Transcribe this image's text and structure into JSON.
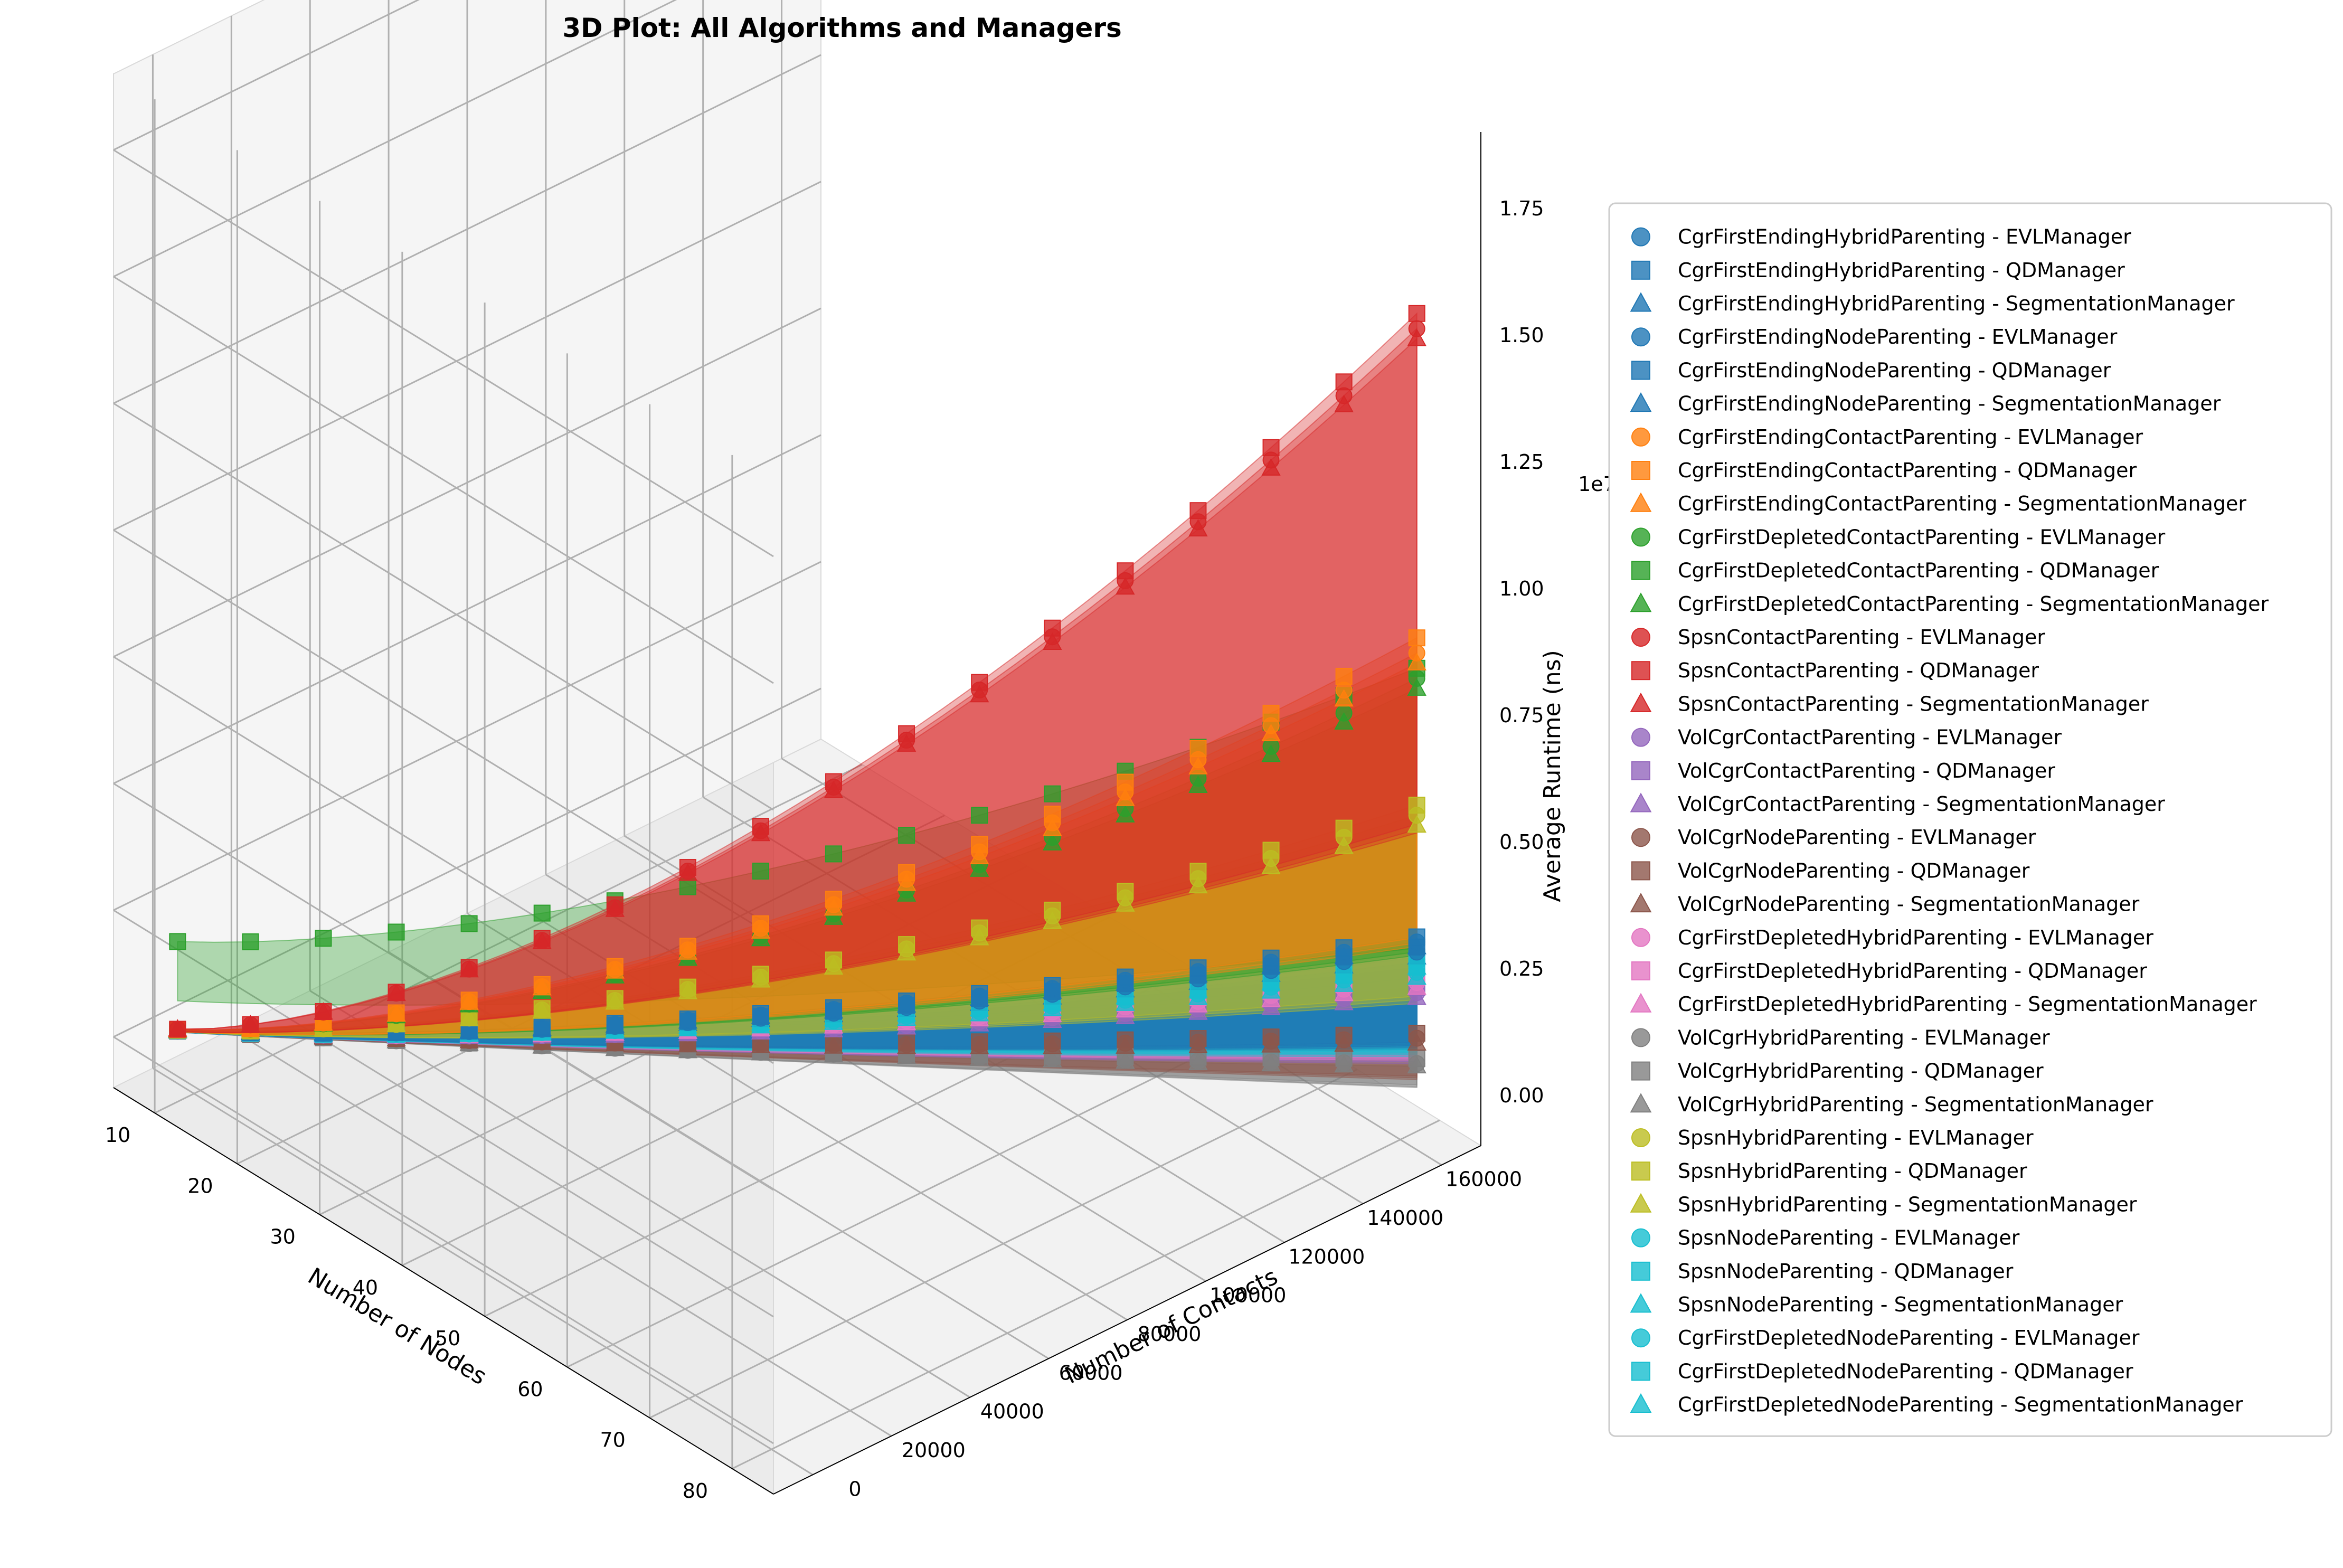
{
  "chart_data": {
    "type": "scatter",
    "projection": "3d",
    "title": "3D Plot: All Algorithms and Managers",
    "xlabel": "Number of Nodes",
    "ylabel": "Number of Contacts",
    "zlabel": "Average Runtime (ns)",
    "z_offset_label": "1e7",
    "xlim": [
      5,
      85
    ],
    "ylim": [
      -10000,
      170000
    ],
    "zlim": [
      -1000000,
      19000000
    ],
    "x_ticks": [
      "10",
      "20",
      "30",
      "40",
      "50",
      "60",
      "70",
      "80"
    ],
    "y_ticks": [
      "0",
      "20000",
      "40000",
      "60000",
      "80000",
      "100000",
      "120000",
      "140000",
      "160000"
    ],
    "z_ticks": [
      "0.00",
      "0.25",
      "0.50",
      "0.75",
      "1.00",
      "1.25",
      "1.50",
      "1.75"
    ],
    "grid": true,
    "legend_position": "outside-right",
    "surfaces": true,
    "series": [
      {
        "name": "CgrFirstEndingHybridParenting - EVLManager",
        "color": "#1f77b4",
        "marker": "circle",
        "z_start": 50000,
        "z_end": 3100000
      },
      {
        "name": "CgrFirstEndingHybridParenting - QDManager",
        "color": "#1f77b4",
        "marker": "square",
        "z_start": 50000,
        "z_end": 3200000
      },
      {
        "name": "CgrFirstEndingHybridParenting - SegmentationManager",
        "color": "#1f77b4",
        "marker": "triangle",
        "z_start": 50000,
        "z_end": 3000000
      },
      {
        "name": "CgrFirstEndingNodeParenting - EVLManager",
        "color": "#1f77b4",
        "marker": "circle",
        "z_start": 50000,
        "z_end": 2900000
      },
      {
        "name": "CgrFirstEndingNodeParenting - QDManager",
        "color": "#1f77b4",
        "marker": "square",
        "z_start": 50000,
        "z_end": 3000000
      },
      {
        "name": "CgrFirstEndingNodeParenting - SegmentationManager",
        "color": "#1f77b4",
        "marker": "triangle",
        "z_start": 50000,
        "z_end": 2800000
      },
      {
        "name": "CgrFirstEndingContactParenting - EVLManager",
        "color": "#ff7f0e",
        "marker": "circle",
        "z_start": 60000,
        "z_end": 8800000
      },
      {
        "name": "CgrFirstEndingContactParenting - QDManager",
        "color": "#ff7f0e",
        "marker": "square",
        "z_start": 60000,
        "z_end": 9100000
      },
      {
        "name": "CgrFirstEndingContactParenting - SegmentationManager",
        "color": "#ff7f0e",
        "marker": "triangle",
        "z_start": 60000,
        "z_end": 8600000
      },
      {
        "name": "CgrFirstDepletedContactParenting - EVLManager",
        "color": "#2ca02c",
        "marker": "circle",
        "z_start": 60000,
        "z_end": 8300000
      },
      {
        "name": "CgrFirstDepletedContactParenting - QDManager",
        "color": "#2ca02c",
        "marker": "square",
        "z_start": 1800000,
        "z_end": 8500000
      },
      {
        "name": "CgrFirstDepletedContactParenting - SegmentationManager",
        "color": "#2ca02c",
        "marker": "triangle",
        "z_start": 60000,
        "z_end": 8100000
      },
      {
        "name": "SpsnContactParenting - EVLManager",
        "color": "#d62728",
        "marker": "circle",
        "z_start": 70000,
        "z_end": 15200000
      },
      {
        "name": "SpsnContactParenting - QDManager",
        "color": "#d62728",
        "marker": "square",
        "z_start": 70000,
        "z_end": 15500000
      },
      {
        "name": "SpsnContactParenting - SegmentationManager",
        "color": "#d62728",
        "marker": "triangle",
        "z_start": 70000,
        "z_end": 15000000
      },
      {
        "name": "VolCgrContactParenting - EVLManager",
        "color": "#9467bd",
        "marker": "circle",
        "z_start": 40000,
        "z_end": 2100000
      },
      {
        "name": "VolCgrContactParenting - QDManager",
        "color": "#9467bd",
        "marker": "square",
        "z_start": 40000,
        "z_end": 2200000
      },
      {
        "name": "VolCgrContactParenting - SegmentationManager",
        "color": "#9467bd",
        "marker": "triangle",
        "z_start": 40000,
        "z_end": 2000000
      },
      {
        "name": "VolCgrNodeParenting - EVLManager",
        "color": "#8c564b",
        "marker": "circle",
        "z_start": 40000,
        "z_end": 1200000
      },
      {
        "name": "VolCgrNodeParenting - QDManager",
        "color": "#8c564b",
        "marker": "square",
        "z_start": 40000,
        "z_end": 1300000
      },
      {
        "name": "VolCgrNodeParenting - SegmentationManager",
        "color": "#8c564b",
        "marker": "triangle",
        "z_start": 40000,
        "z_end": 1100000
      },
      {
        "name": "CgrFirstDepletedHybridParenting - EVLManager",
        "color": "#e377c2",
        "marker": "circle",
        "z_start": 40000,
        "z_end": 2300000
      },
      {
        "name": "CgrFirstDepletedHybridParenting - QDManager",
        "color": "#e377c2",
        "marker": "square",
        "z_start": 40000,
        "z_end": 2400000
      },
      {
        "name": "CgrFirstDepletedHybridParenting - SegmentationManager",
        "color": "#e377c2",
        "marker": "triangle",
        "z_start": 40000,
        "z_end": 2200000
      },
      {
        "name": "VolCgrHybridParenting - EVLManager",
        "color": "#7f7f7f",
        "marker": "circle",
        "z_start": 30000,
        "z_end": 700000
      },
      {
        "name": "VolCgrHybridParenting - QDManager",
        "color": "#7f7f7f",
        "marker": "square",
        "z_start": 30000,
        "z_end": 800000
      },
      {
        "name": "VolCgrHybridParenting - SegmentationManager",
        "color": "#7f7f7f",
        "marker": "triangle",
        "z_start": 30000,
        "z_end": 650000
      },
      {
        "name": "SpsnHybridParenting - EVLManager",
        "color": "#bcbd22",
        "marker": "circle",
        "z_start": 50000,
        "z_end": 5600000
      },
      {
        "name": "SpsnHybridParenting - QDManager",
        "color": "#bcbd22",
        "marker": "square",
        "z_start": 50000,
        "z_end": 5800000
      },
      {
        "name": "SpsnHybridParenting - SegmentationManager",
        "color": "#bcbd22",
        "marker": "triangle",
        "z_start": 50000,
        "z_end": 5400000
      },
      {
        "name": "SpsnNodeParenting - EVLManager",
        "color": "#17becf",
        "marker": "circle",
        "z_start": 40000,
        "z_end": 2700000
      },
      {
        "name": "SpsnNodeParenting - QDManager",
        "color": "#17becf",
        "marker": "square",
        "z_start": 40000,
        "z_end": 2800000
      },
      {
        "name": "SpsnNodeParenting - SegmentationManager",
        "color": "#17becf",
        "marker": "triangle",
        "z_start": 40000,
        "z_end": 2600000
      },
      {
        "name": "CgrFirstDepletedNodeParenting - EVLManager",
        "color": "#17becf",
        "marker": "circle",
        "z_start": 40000,
        "z_end": 2500000
      },
      {
        "name": "CgrFirstDepletedNodeParenting - QDManager",
        "color": "#17becf",
        "marker": "square",
        "z_start": 40000,
        "z_end": 2600000
      },
      {
        "name": "CgrFirstDepletedNodeParenting - SegmentationManager",
        "color": "#17becf",
        "marker": "triangle",
        "z_start": 40000,
        "z_end": 2400000
      }
    ]
  }
}
